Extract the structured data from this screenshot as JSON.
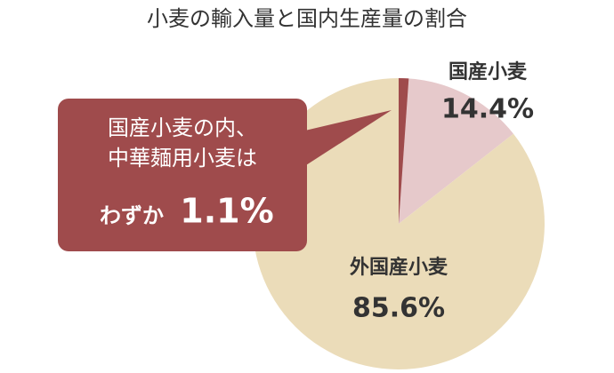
{
  "chart_data": {
    "type": "pie",
    "title": "小麦の輸入量と国内生産量の割合",
    "categories": [
      "国産小麦",
      "外国産小麦"
    ],
    "values": [
      14.4,
      85.6
    ],
    "value_labels": [
      "14.4%",
      "85.6%"
    ],
    "colors": [
      "#e6c9cb",
      "#ebdcb9"
    ],
    "inset": {
      "lines": [
        "国産小麦の内、",
        "中華麺用小麦は"
      ],
      "prefix": "わずか",
      "value": 1.1,
      "value_label": "1.1%",
      "color": "#9f4b4c"
    }
  }
}
